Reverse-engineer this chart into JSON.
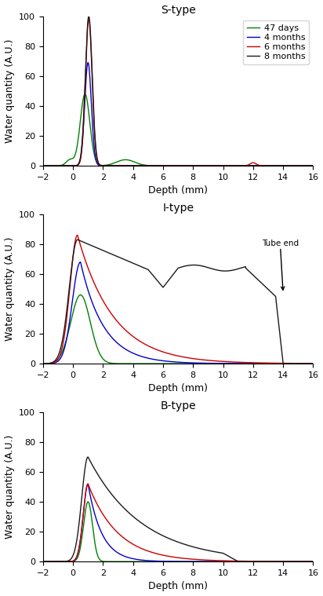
{
  "titles": [
    "S-type",
    "I-type",
    "B-type"
  ],
  "xlabel": "Depth (mm)",
  "ylabel": "Water quantity (A.U.)",
  "xlim": [
    -2,
    16
  ],
  "ylim": [
    0,
    100
  ],
  "xticks": [
    -2,
    0,
    2,
    4,
    6,
    8,
    10,
    12,
    14,
    16
  ],
  "yticks": [
    0,
    20,
    40,
    60,
    80,
    100
  ],
  "colors": {
    "47days": "#008000",
    "4months": "#0000cc",
    "6months": "#cc0000",
    "8months": "#1a1a1a"
  },
  "legend_labels": [
    "47 days",
    "4 months",
    "6 months",
    "8 months"
  ]
}
